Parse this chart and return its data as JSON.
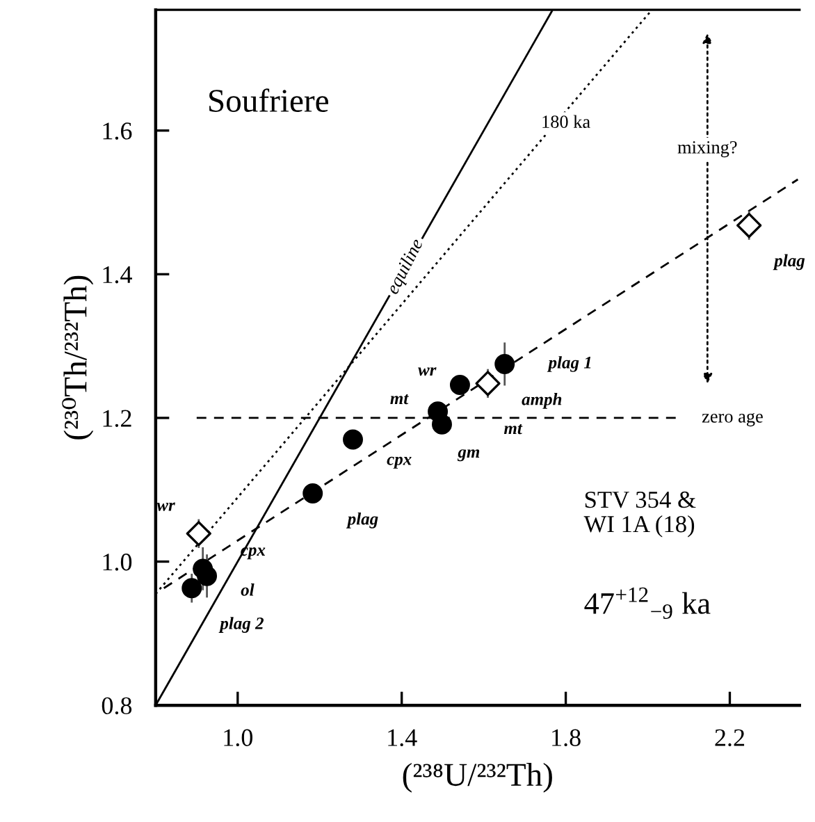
{
  "chart_data": {
    "type": "scatter",
    "xlabel": "(²³⁸U/²³²Th)",
    "ylabel": "(²³⁰Th/²³²Th)",
    "xlim": [
      0.8,
      2.37
    ],
    "ylim": [
      0.8,
      1.768
    ],
    "xticks": [
      {
        "value": 1.0,
        "label": "1.0"
      },
      1.4,
      1.8,
      2.2
    ],
    "yticks": [
      0.8,
      {
        "value": 1.0,
        "label": "1.0"
      },
      1.2,
      1.4,
      1.6
    ],
    "grid": false,
    "legend": false,
    "series": [
      {
        "type": "line",
        "color": "#000000",
        "line_style": "solid",
        "marker": "none",
        "x": [
          0.8,
          1.766
        ],
        "values": [
          0.8,
          1.766
        ]
      },
      {
        "type": "line",
        "color": "#000000",
        "line_style": "dotted",
        "marker": "none",
        "x": [
          0.8,
          2.01
        ],
        "values": [
          0.955,
          1.768
        ]
      },
      {
        "type": "line",
        "color": "#000000",
        "line_style": "dashed",
        "marker": "none",
        "x": [
          0.82,
          2.366
        ],
        "values": [
          0.963,
          1.532
        ]
      },
      {
        "type": "line",
        "color": "#000000",
        "line_style": "dashed",
        "marker": "none",
        "x": [
          0.9,
          2.07
        ],
        "values": [
          1.2,
          1.2
        ]
      },
      {
        "color": "#000000",
        "marker": "circle",
        "x": [
          0.888,
          0.915,
          0.925,
          1.183,
          1.281,
          1.488,
          1.498,
          1.542,
          1.651
        ],
        "values": [
          0.963,
          0.99,
          0.98,
          1.095,
          1.17,
          1.209,
          1.191,
          1.246,
          1.275
        ],
        "errors": [
          0.02,
          0.03,
          0.03,
          null,
          null,
          null,
          null,
          null,
          0.03
        ]
      },
      {
        "color": "#ffffff",
        "marker": "diamond",
        "x": [
          0.905,
          1.61,
          2.247
        ],
        "values": [
          1.039,
          1.248,
          1.468
        ],
        "errors": [
          0.02,
          0.02,
          0.02
        ],
        "xerrors": [
          null,
          null,
          0.03
        ]
      }
    ],
    "annotations": [
      {
        "text": "plag 2",
        "x": 0.888,
        "y": 0.963
      },
      {
        "text": "ol",
        "x": 0.925,
        "y": 0.98
      },
      {
        "text": "cpx",
        "x": 0.915,
        "y": 0.99
      },
      {
        "text": "plag",
        "x": 1.183,
        "y": 1.095
      },
      {
        "text": "cpx",
        "x": 1.281,
        "y": 1.17
      },
      {
        "text": "mt",
        "x": 1.488,
        "y": 1.209
      },
      {
        "text": "gm",
        "x": 1.498,
        "y": 1.191
      },
      {
        "text": "wr",
        "x": 1.542,
        "y": 1.246
      },
      {
        "text": "plag 1",
        "x": 1.651,
        "y": 1.275
      },
      {
        "text": "amph",
        "x": 1.61,
        "y": 1.248
      },
      {
        "text": "mt",
        "x": 1.61,
        "y": 1.248
      },
      {
        "text": "plag",
        "x": 2.247,
        "y": 1.468
      },
      {
        "text": "wr",
        "x": 0.905,
        "y": 1.039
      },
      {
        "text": "equiline",
        "x": 1.41,
        "y": 1.41
      },
      {
        "text": "180 ka",
        "x": 1.8,
        "y": 1.61
      },
      "mixing?",
      "zero age",
      "Soufriere",
      "STV 354 &\nWI 1A (18)",
      "47$^{+12}$$_{−9}$ ka"
    ]
  }
}
